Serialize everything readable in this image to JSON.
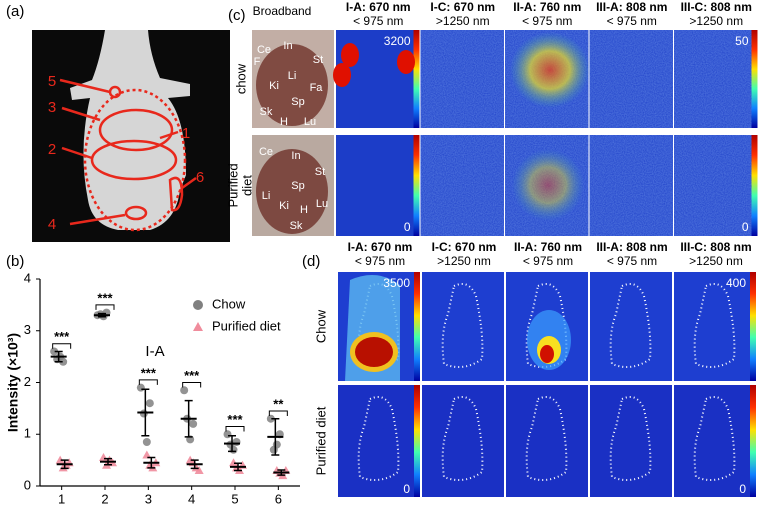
{
  "panel_a": {
    "label": "(a)",
    "regions": [
      "1",
      "2",
      "3",
      "4",
      "5",
      "6"
    ]
  },
  "chart_data": {
    "type": "scatter",
    "label": "(b)",
    "y_label": "Intensity (×10³)",
    "annotation": "I-A",
    "categories": [
      "1",
      "2",
      "3",
      "4",
      "5",
      "6"
    ],
    "ylim": [
      0,
      4
    ],
    "yticks": [
      0,
      1,
      2,
      3,
      4
    ],
    "legend": "upper right",
    "significance": [
      "***",
      "***",
      "***",
      "***",
      "***",
      "**"
    ],
    "series": [
      {
        "name": "Chow",
        "color": "#808080",
        "marker": "circle",
        "values": [
          2.5,
          3.3,
          1.42,
          1.3,
          0.82,
          0.95
        ],
        "errors": [
          0.1,
          0.03,
          0.45,
          0.35,
          0.15,
          0.35
        ],
        "points": [
          [
            2.6,
            2.45,
            2.5,
            2.4
          ],
          [
            3.3,
            3.32,
            3.28,
            3.35
          ],
          [
            1.9,
            1.4,
            0.85,
            1.6
          ],
          [
            1.85,
            1.3,
            0.9,
            1.2
          ],
          [
            1.0,
            0.8,
            0.7,
            0.85
          ],
          [
            1.3,
            0.7,
            0.8,
            1.0
          ]
        ]
      },
      {
        "name": "Purified diet",
        "color": "#f08c9c",
        "marker": "triangle",
        "values": [
          0.42,
          0.47,
          0.45,
          0.42,
          0.37,
          0.26
        ],
        "errors": [
          0.08,
          0.06,
          0.1,
          0.08,
          0.07,
          0.05
        ],
        "points": [
          [
            0.5,
            0.35,
            0.4,
            0.45
          ],
          [
            0.55,
            0.4,
            0.5,
            0.45
          ],
          [
            0.6,
            0.4,
            0.35,
            0.45
          ],
          [
            0.5,
            0.45,
            0.35,
            0.3
          ],
          [
            0.45,
            0.35,
            0.3,
            0.4
          ],
          [
            0.3,
            0.25,
            0.2,
            0.3
          ]
        ]
      }
    ]
  },
  "panel_c": {
    "label": "(c)",
    "broadband": "Broadband",
    "columns": [
      [
        "I-A: 670 nm",
        "< 975 nm"
      ],
      [
        "I-C: 670 nm",
        ">1250 nm"
      ],
      [
        "II-A: 760 nm",
        "< 975 nm"
      ],
      [
        "III-A: 808 nm",
        "< 975 nm"
      ],
      [
        "III-C: 808 nm",
        ">1250 nm"
      ]
    ],
    "rows": [
      "chow",
      [
        "Purified",
        "diet"
      ]
    ],
    "organs": [
      [
        "Ce",
        "In",
        "St",
        "F",
        "Li",
        "Fa",
        "Ki",
        "Sp",
        "Sk",
        "H",
        "Lu"
      ],
      [
        "Ce",
        "In",
        "St",
        "Sp",
        "Li",
        "Ki",
        "H",
        "Lu",
        "Sk"
      ]
    ],
    "scales": [
      {
        "max": 3200,
        "min": 0
      },
      {
        "max": 50,
        "min": 0
      }
    ]
  },
  "panel_d": {
    "label": "(d)",
    "columns": [
      [
        "I-A: 670 nm",
        "< 975 nm"
      ],
      [
        "I-C: 670 nm",
        ">1250 nm"
      ],
      [
        "II-A: 760 nm",
        "< 975 nm"
      ],
      [
        "III-A: 808 nm",
        "< 975 nm"
      ],
      [
        "III-C: 808 nm",
        ">1250 nm"
      ]
    ],
    "rows": [
      "Chow",
      "Purified diet"
    ],
    "scales": [
      {
        "max": 3500,
        "min": 0
      },
      {
        "max": 400,
        "min": 0
      }
    ]
  }
}
